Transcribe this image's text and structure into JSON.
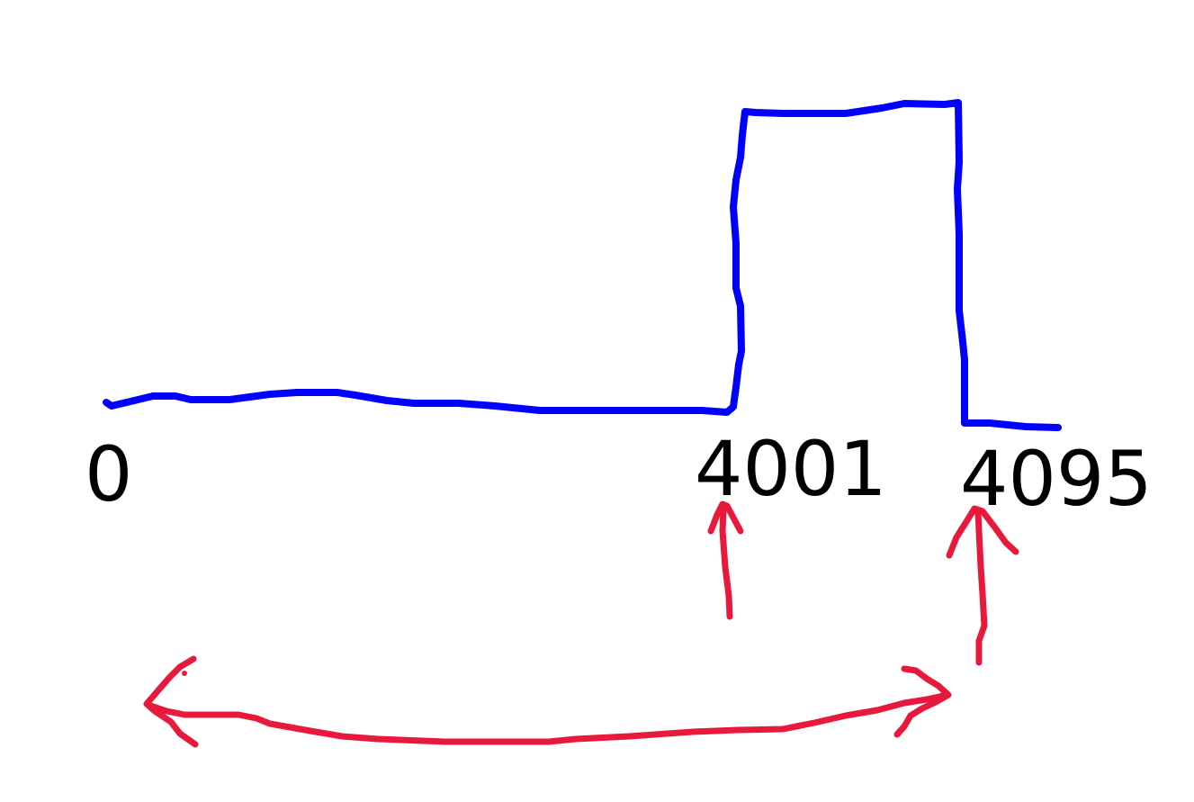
{
  "labels": {
    "start": "0",
    "rise": "4001",
    "end": "4095"
  },
  "colors": {
    "signal": "#0000ff",
    "annotation": "#e8193c",
    "text": "#000000",
    "background": "#ffffff"
  }
}
